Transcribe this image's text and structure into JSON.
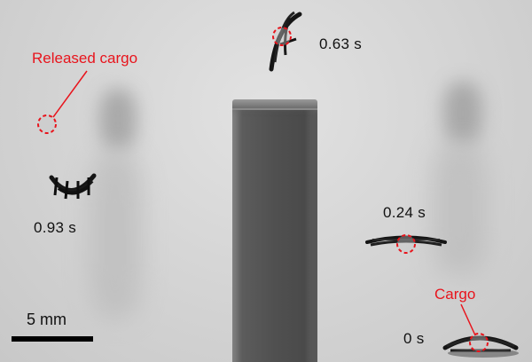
{
  "labels": {
    "released_cargo": "Released cargo",
    "cargo": "Cargo",
    "scale": "5 mm"
  },
  "timestamps": {
    "t0": "0 s",
    "t024": "0.24 s",
    "t063": "0.63 s",
    "t093": "0.93 s"
  },
  "colors": {
    "annotation": "#e8141c",
    "robot": "#151515",
    "block": "#505050"
  }
}
